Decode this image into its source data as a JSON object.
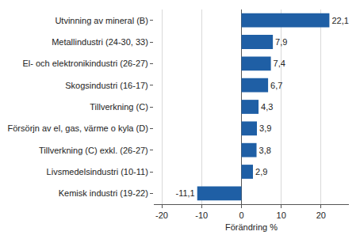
{
  "chart_data": {
    "type": "bar",
    "orientation": "horizontal",
    "categories": [
      "Utvinning av mineral (B)",
      "Metallindustri (24-30, 33)",
      "El- och elektronikindustri (26-27)",
      "Skogsindustri (16-17)",
      "Tillverkning (C)",
      "Försörjn av el, gas, värme o kyla (D)",
      "Tillverkning (C) exkl. (26-27)",
      "Livsmedelsindustri (10-11)",
      "Kemisk industri (19-22)"
    ],
    "values": [
      22.1,
      7.9,
      7.4,
      6.7,
      4.3,
      3.9,
      3.8,
      2.9,
      -11.1
    ],
    "value_labels": [
      "22,1",
      "7,9",
      "7,4",
      "6,7",
      "4,3",
      "3,9",
      "3,8",
      "2,9",
      "-11,1"
    ],
    "data_labels": true,
    "color": "#1f5fa5",
    "xlabel": "Förändring %",
    "xlim": [
      -22,
      27
    ],
    "xticks": [
      -20,
      -10,
      0,
      10,
      20
    ],
    "grid": true
  }
}
